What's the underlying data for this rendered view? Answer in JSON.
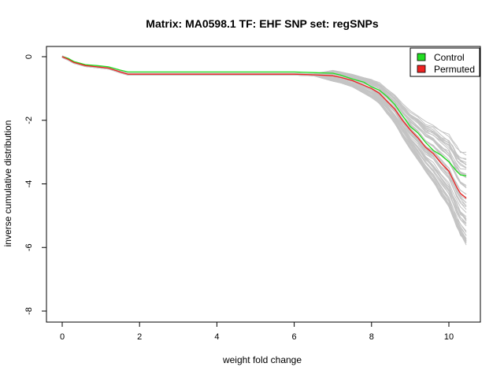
{
  "chart_data": {
    "type": "line",
    "title": "Matrix: MA0598.1 TF: EHF SNP set: regSNPs",
    "xlabel": "weight fold change",
    "ylabel": "inverse cumulative distribution",
    "xlim": [
      -0.5,
      10.8
    ],
    "ylim": [
      -8.2,
      0.2
    ],
    "xticks": [
      0,
      2,
      4,
      6,
      8,
      10
    ],
    "yticks": [
      0,
      -2,
      -4,
      -6,
      -8
    ],
    "grid": false,
    "legend": {
      "position": "top-right",
      "entries": [
        "Control",
        "Permuted"
      ]
    },
    "colors": {
      "Control": "#22dd22",
      "Permuted": "#ee2222",
      "permutations": "#c4c4c4"
    },
    "permutation_curves": {
      "count": 60,
      "color": "#c4c4c4"
    },
    "series": [
      {
        "name": "Control",
        "x": [
          0,
          0.15,
          0.3,
          0.6,
          0.9,
          1.2,
          1.5,
          1.7,
          2.0,
          3.0,
          4.0,
          5.0,
          6.0,
          6.5,
          7.0,
          7.2,
          7.5,
          7.8,
          8.0,
          8.2,
          8.4,
          8.6,
          8.8,
          9.0,
          9.2,
          9.4,
          9.6,
          9.8,
          10.0,
          10.1,
          10.2,
          10.3,
          10.45
        ],
        "y": [
          0,
          -0.05,
          -0.15,
          -0.25,
          -0.28,
          -0.32,
          -0.42,
          -0.48,
          -0.48,
          -0.48,
          -0.48,
          -0.48,
          -0.48,
          -0.5,
          -0.52,
          -0.58,
          -0.7,
          -0.8,
          -0.95,
          -1.05,
          -1.25,
          -1.5,
          -1.85,
          -2.2,
          -2.4,
          -2.7,
          -2.95,
          -3.1,
          -3.3,
          -3.45,
          -3.6,
          -3.72,
          -3.75
        ]
      },
      {
        "name": "Permuted",
        "x": [
          0,
          0.15,
          0.3,
          0.6,
          0.9,
          1.2,
          1.5,
          1.7,
          2.0,
          3.0,
          4.0,
          5.0,
          6.0,
          6.5,
          7.0,
          7.2,
          7.5,
          7.8,
          8.0,
          8.2,
          8.4,
          8.6,
          8.8,
          9.0,
          9.2,
          9.4,
          9.6,
          9.8,
          10.0,
          10.1,
          10.2,
          10.3,
          10.45
        ],
        "y": [
          0,
          -0.08,
          -0.18,
          -0.28,
          -0.32,
          -0.36,
          -0.48,
          -0.55,
          -0.55,
          -0.55,
          -0.55,
          -0.55,
          -0.55,
          -0.57,
          -0.6,
          -0.65,
          -0.75,
          -0.9,
          -1.0,
          -1.15,
          -1.4,
          -1.65,
          -2.0,
          -2.3,
          -2.55,
          -2.85,
          -3.05,
          -3.35,
          -3.6,
          -3.85,
          -4.1,
          -4.3,
          -4.45
        ]
      }
    ]
  }
}
